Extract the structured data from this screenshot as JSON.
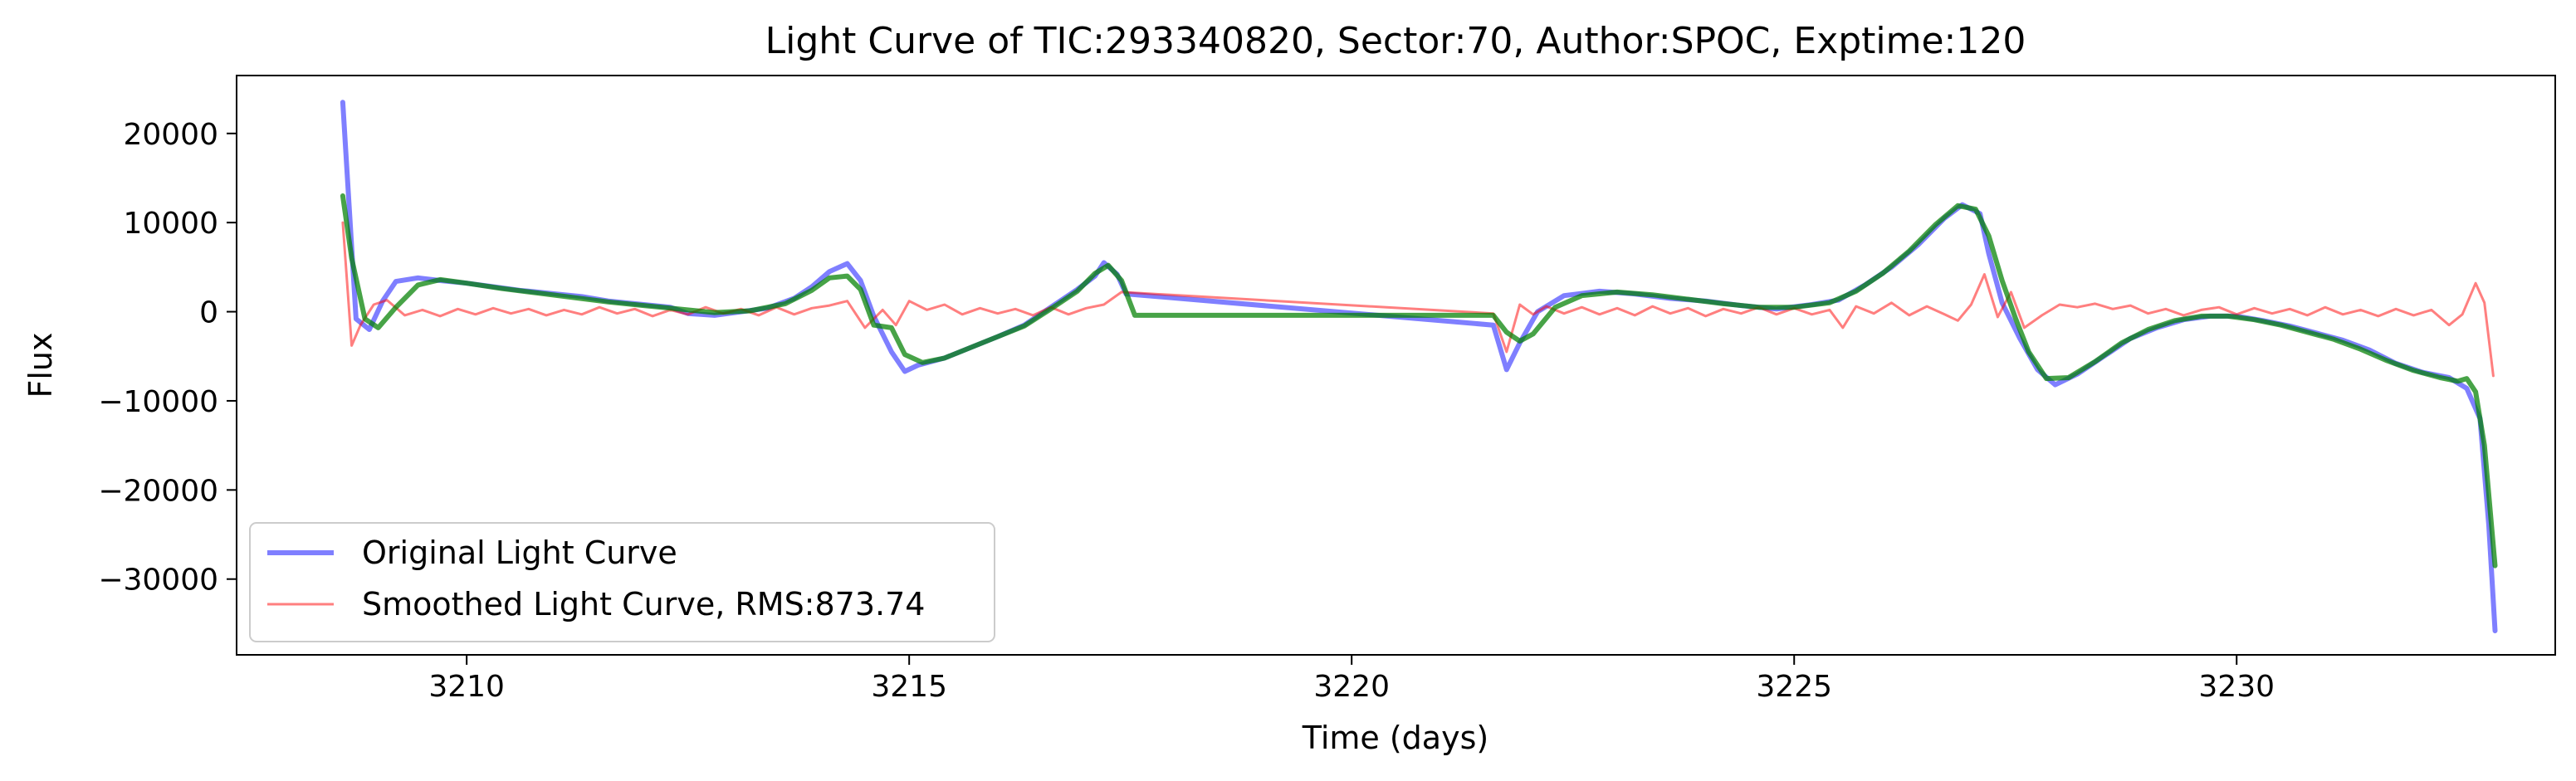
{
  "chart_data": {
    "type": "line",
    "title": "Light Curve of TIC:293340820, Sector:70, Author:SPOC, Exptime:120",
    "xlabel": "Time (days)",
    "ylabel": "Flux",
    "xlim": [
      3207.4,
      3233.6
    ],
    "ylim": [
      -38500,
      26500
    ],
    "xticks": [
      3210,
      3215,
      3220,
      3225,
      3230
    ],
    "yticks": [
      20000,
      10000,
      0,
      -10000,
      -20000,
      -30000
    ],
    "ytick_labels": [
      "20000",
      "10000",
      "0",
      "−10000",
      "−20000",
      "−30000"
    ],
    "legend_position": "lower left",
    "grid": false,
    "series": [
      {
        "name": "Original Light Curve",
        "color": "#0000ff",
        "opacity": 0.5,
        "style": "thick",
        "points": [
          [
            3208.6,
            23500
          ],
          [
            3208.75,
            -800
          ],
          [
            3208.9,
            -2000
          ],
          [
            3209.05,
            1200
          ],
          [
            3209.2,
            3400
          ],
          [
            3209.45,
            3800
          ],
          [
            3209.7,
            3500
          ],
          [
            3210.0,
            3200
          ],
          [
            3210.3,
            2800
          ],
          [
            3210.6,
            2400
          ],
          [
            3211.0,
            2000
          ],
          [
            3211.3,
            1700
          ],
          [
            3211.6,
            1200
          ],
          [
            3212.0,
            800
          ],
          [
            3212.3,
            500
          ],
          [
            3212.5,
            -200
          ],
          [
            3212.8,
            -400
          ],
          [
            3213.1,
            0
          ],
          [
            3213.4,
            400
          ],
          [
            3213.7,
            1500
          ],
          [
            3213.9,
            2800
          ],
          [
            3214.1,
            4500
          ],
          [
            3214.3,
            5400
          ],
          [
            3214.45,
            3500
          ],
          [
            3214.6,
            -500
          ],
          [
            3214.8,
            -4500
          ],
          [
            3214.95,
            -6700
          ],
          [
            3215.1,
            -6000
          ],
          [
            3215.4,
            -5200
          ],
          [
            3215.7,
            -4000
          ],
          [
            3216.0,
            -2800
          ],
          [
            3216.3,
            -1500
          ],
          [
            3216.6,
            500
          ],
          [
            3216.9,
            2500
          ],
          [
            3217.1,
            4000
          ],
          [
            3217.2,
            5500
          ],
          [
            3217.35,
            4200
          ],
          [
            3217.45,
            2000
          ],
          [
            3221.6,
            -1500
          ],
          [
            3221.75,
            -6500
          ],
          [
            3221.9,
            -3500
          ],
          [
            3222.1,
            0
          ],
          [
            3222.4,
            1800
          ],
          [
            3222.8,
            2300
          ],
          [
            3223.2,
            2000
          ],
          [
            3223.6,
            1500
          ],
          [
            3224.0,
            1200
          ],
          [
            3224.4,
            700
          ],
          [
            3224.8,
            300
          ],
          [
            3225.2,
            800
          ],
          [
            3225.5,
            1300
          ],
          [
            3225.8,
            3000
          ],
          [
            3226.1,
            5000
          ],
          [
            3226.4,
            7500
          ],
          [
            3226.7,
            10500
          ],
          [
            3226.9,
            12000
          ],
          [
            3227.1,
            11000
          ],
          [
            3227.2,
            6500
          ],
          [
            3227.35,
            1000
          ],
          [
            3227.55,
            -3000
          ],
          [
            3227.75,
            -6500
          ],
          [
            3227.95,
            -8200
          ],
          [
            3228.2,
            -7000
          ],
          [
            3228.5,
            -5000
          ],
          [
            3228.8,
            -3000
          ],
          [
            3229.1,
            -1800
          ],
          [
            3229.4,
            -900
          ],
          [
            3229.7,
            -500
          ],
          [
            3230.0,
            -500
          ],
          [
            3230.3,
            -1000
          ],
          [
            3230.6,
            -1600
          ],
          [
            3230.9,
            -2400
          ],
          [
            3231.2,
            -3200
          ],
          [
            3231.5,
            -4300
          ],
          [
            3231.8,
            -5800
          ],
          [
            3232.1,
            -6800
          ],
          [
            3232.4,
            -7400
          ],
          [
            3232.6,
            -8600
          ],
          [
            3232.75,
            -12000
          ],
          [
            3232.85,
            -24000
          ],
          [
            3232.92,
            -35800
          ]
        ]
      },
      {
        "name": "Smoothed Light Curve, RMS:873.74",
        "color": "#ff0000",
        "opacity": 0.5,
        "style": "thin",
        "points": [
          [
            3208.6,
            10000
          ],
          [
            3208.7,
            -3800
          ],
          [
            3208.8,
            -1500
          ],
          [
            3208.95,
            800
          ],
          [
            3209.1,
            1300
          ],
          [
            3209.3,
            -400
          ],
          [
            3209.5,
            200
          ],
          [
            3209.7,
            -500
          ],
          [
            3209.9,
            300
          ],
          [
            3210.1,
            -300
          ],
          [
            3210.3,
            400
          ],
          [
            3210.5,
            -200
          ],
          [
            3210.7,
            300
          ],
          [
            3210.9,
            -400
          ],
          [
            3211.1,
            200
          ],
          [
            3211.3,
            -300
          ],
          [
            3211.5,
            500
          ],
          [
            3211.7,
            -200
          ],
          [
            3211.9,
            300
          ],
          [
            3212.1,
            -500
          ],
          [
            3212.3,
            200
          ],
          [
            3212.5,
            -300
          ],
          [
            3212.7,
            500
          ],
          [
            3212.9,
            -200
          ],
          [
            3213.1,
            300
          ],
          [
            3213.3,
            -400
          ],
          [
            3213.5,
            500
          ],
          [
            3213.7,
            -300
          ],
          [
            3213.9,
            400
          ],
          [
            3214.1,
            700
          ],
          [
            3214.3,
            1200
          ],
          [
            3214.5,
            -1800
          ],
          [
            3214.7,
            200
          ],
          [
            3214.85,
            -1500
          ],
          [
            3215.0,
            1200
          ],
          [
            3215.2,
            200
          ],
          [
            3215.4,
            800
          ],
          [
            3215.6,
            -300
          ],
          [
            3215.8,
            400
          ],
          [
            3216.0,
            -200
          ],
          [
            3216.2,
            300
          ],
          [
            3216.4,
            -400
          ],
          [
            3216.6,
            500
          ],
          [
            3216.8,
            -300
          ],
          [
            3217.0,
            400
          ],
          [
            3217.2,
            800
          ],
          [
            3217.4,
            2200
          ],
          [
            3221.6,
            -200
          ],
          [
            3221.75,
            -4500
          ],
          [
            3221.9,
            800
          ],
          [
            3222.05,
            -300
          ],
          [
            3222.2,
            600
          ],
          [
            3222.4,
            -200
          ],
          [
            3222.6,
            500
          ],
          [
            3222.8,
            -300
          ],
          [
            3223.0,
            400
          ],
          [
            3223.2,
            -400
          ],
          [
            3223.4,
            600
          ],
          [
            3223.6,
            -200
          ],
          [
            3223.8,
            400
          ],
          [
            3224.0,
            -500
          ],
          [
            3224.2,
            300
          ],
          [
            3224.4,
            -200
          ],
          [
            3224.6,
            500
          ],
          [
            3224.8,
            -300
          ],
          [
            3225.0,
            400
          ],
          [
            3225.2,
            -300
          ],
          [
            3225.4,
            200
          ],
          [
            3225.55,
            -1800
          ],
          [
            3225.7,
            600
          ],
          [
            3225.9,
            -200
          ],
          [
            3226.1,
            1000
          ],
          [
            3226.3,
            -400
          ],
          [
            3226.5,
            600
          ],
          [
            3226.7,
            -300
          ],
          [
            3226.85,
            -1000
          ],
          [
            3227.0,
            800
          ],
          [
            3227.15,
            4200
          ],
          [
            3227.3,
            -600
          ],
          [
            3227.45,
            2200
          ],
          [
            3227.6,
            -1800
          ],
          [
            3227.8,
            -400
          ],
          [
            3228.0,
            800
          ],
          [
            3228.2,
            500
          ],
          [
            3228.4,
            900
          ],
          [
            3228.6,
            300
          ],
          [
            3228.8,
            700
          ],
          [
            3229.0,
            -200
          ],
          [
            3229.2,
            300
          ],
          [
            3229.4,
            -400
          ],
          [
            3229.6,
            200
          ],
          [
            3229.8,
            500
          ],
          [
            3230.0,
            -300
          ],
          [
            3230.2,
            400
          ],
          [
            3230.4,
            -200
          ],
          [
            3230.6,
            300
          ],
          [
            3230.8,
            -400
          ],
          [
            3231.0,
            500
          ],
          [
            3231.2,
            -300
          ],
          [
            3231.4,
            200
          ],
          [
            3231.6,
            -500
          ],
          [
            3231.8,
            300
          ],
          [
            3232.0,
            -400
          ],
          [
            3232.2,
            200
          ],
          [
            3232.4,
            -1500
          ],
          [
            3232.55,
            -300
          ],
          [
            3232.7,
            3200
          ],
          [
            3232.8,
            1000
          ],
          [
            3232.9,
            -7200
          ]
        ]
      },
      {
        "name": "",
        "color": "#008000",
        "opacity": 0.72,
        "style": "thick",
        "points": [
          [
            3208.6,
            13000
          ],
          [
            3208.7,
            6000
          ],
          [
            3208.85,
            -800
          ],
          [
            3209.0,
            -1800
          ],
          [
            3209.2,
            500
          ],
          [
            3209.45,
            3000
          ],
          [
            3209.7,
            3600
          ],
          [
            3210.0,
            3200
          ],
          [
            3210.4,
            2600
          ],
          [
            3210.8,
            2100
          ],
          [
            3211.2,
            1600
          ],
          [
            3211.6,
            1100
          ],
          [
            3212.0,
            700
          ],
          [
            3212.4,
            300
          ],
          [
            3212.8,
            -100
          ],
          [
            3213.2,
            100
          ],
          [
            3213.6,
            900
          ],
          [
            3213.9,
            2400
          ],
          [
            3214.1,
            3800
          ],
          [
            3214.3,
            4000
          ],
          [
            3214.45,
            2500
          ],
          [
            3214.6,
            -1500
          ],
          [
            3214.8,
            -1800
          ],
          [
            3214.95,
            -4800
          ],
          [
            3215.15,
            -5700
          ],
          [
            3215.4,
            -5200
          ],
          [
            3215.7,
            -4000
          ],
          [
            3216.0,
            -2800
          ],
          [
            3216.3,
            -1600
          ],
          [
            3216.6,
            300
          ],
          [
            3216.9,
            2300
          ],
          [
            3217.1,
            4300
          ],
          [
            3217.25,
            5200
          ],
          [
            3217.4,
            3500
          ],
          [
            3217.55,
            -400
          ],
          [
            3221.6,
            -400
          ],
          [
            3221.75,
            -2300
          ],
          [
            3221.9,
            -3300
          ],
          [
            3222.05,
            -2500
          ],
          [
            3222.3,
            500
          ],
          [
            3222.6,
            1800
          ],
          [
            3223.0,
            2200
          ],
          [
            3223.4,
            1900
          ],
          [
            3223.8,
            1400
          ],
          [
            3224.2,
            900
          ],
          [
            3224.6,
            500
          ],
          [
            3225.0,
            500
          ],
          [
            3225.4,
            1000
          ],
          [
            3225.7,
            2300
          ],
          [
            3226.0,
            4300
          ],
          [
            3226.3,
            6800
          ],
          [
            3226.6,
            9800
          ],
          [
            3226.85,
            11900
          ],
          [
            3227.05,
            11500
          ],
          [
            3227.2,
            8500
          ],
          [
            3227.35,
            3500
          ],
          [
            3227.5,
            -700
          ],
          [
            3227.65,
            -4500
          ],
          [
            3227.85,
            -7500
          ],
          [
            3228.1,
            -7400
          ],
          [
            3228.4,
            -5600
          ],
          [
            3228.7,
            -3500
          ],
          [
            3229.0,
            -2000
          ],
          [
            3229.3,
            -1000
          ],
          [
            3229.6,
            -500
          ],
          [
            3229.9,
            -500
          ],
          [
            3230.2,
            -900
          ],
          [
            3230.5,
            -1500
          ],
          [
            3230.8,
            -2300
          ],
          [
            3231.1,
            -3100
          ],
          [
            3231.4,
            -4200
          ],
          [
            3231.7,
            -5500
          ],
          [
            3232.0,
            -6600
          ],
          [
            3232.3,
            -7400
          ],
          [
            3232.5,
            -7800
          ],
          [
            3232.6,
            -7500
          ],
          [
            3232.7,
            -9000
          ],
          [
            3232.8,
            -15000
          ],
          [
            3232.92,
            -28500
          ]
        ]
      }
    ]
  }
}
